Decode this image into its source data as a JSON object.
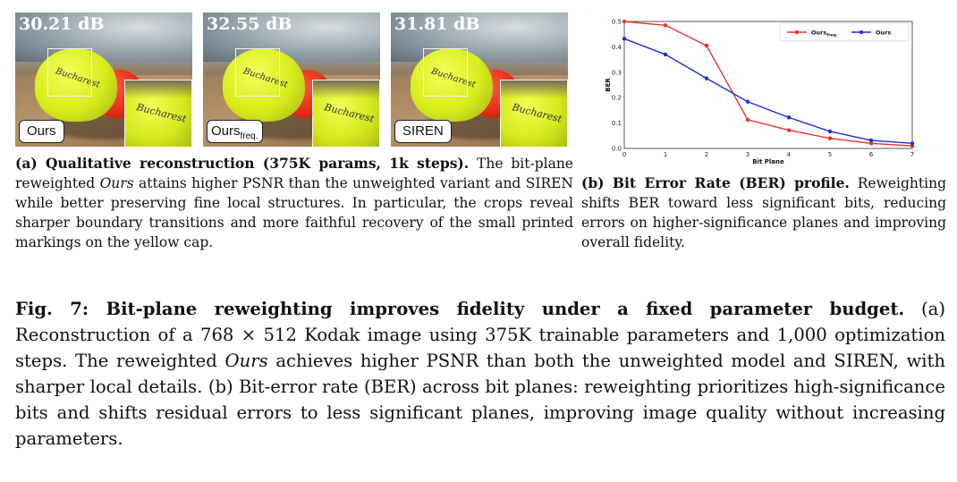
{
  "panels": [
    {
      "psnr": "30.21 dB",
      "label": "Ours",
      "label_sub": "",
      "cap_text": "Bucharest"
    },
    {
      "psnr": "32.55 dB",
      "label": "Ours",
      "label_sub": "freq.",
      "cap_text": "Bucharest"
    },
    {
      "psnr": "31.81 dB",
      "label": "SIREN",
      "label_sub": "",
      "cap_text": "Bucharest"
    }
  ],
  "caption_a": {
    "head": "(a) Qualitative reconstruction (375K params, 1k steps).",
    "body_1": " The bit-plane reweighted ",
    "body_em": "Ours",
    "body_2": " attains higher PSNR than the unweighted variant and SIREN while better preserving fine local structures. In particular, the crops reveal sharper boundary transitions and more faithful recovery of the small printed markings on the yellow cap."
  },
  "caption_b": {
    "head": "(b) Bit Error Rate (BER) profile.",
    "body": " Reweighting shifts BER toward less significant bits, reducing errors on higher-significance planes and improving overall fidelity."
  },
  "figure_caption": {
    "head": "Fig. 7: Bit-plane reweighting improves fidelity under a fixed parameter budget.",
    "body_1": " (a) Reconstruction of a 768 × 512 Kodak image using 375K trainable parameters and 1,000 optimization steps. The reweighted ",
    "body_em": "Ours",
    "body_2": " achieves higher PSNR than both the unweighted model and SIREN, with sharper local details. (b) Bit-error rate (BER) across bit planes: reweighting prioritizes high-significance bits and shifts residual errors to less significant planes, improving image quality without increasing parameters."
  },
  "chart_data": {
    "type": "line",
    "xlabel": "Bit Plane",
    "ylabel": "BER",
    "x": [
      0,
      1,
      2,
      3,
      4,
      5,
      6,
      7
    ],
    "xlim": [
      0,
      7
    ],
    "ylim": [
      0,
      0.5
    ],
    "yticks": [
      "0.0",
      "0.1",
      "0.2",
      "0.3",
      "0.4",
      "0.5"
    ],
    "xticks": [
      "0",
      "1",
      "2",
      "3",
      "4",
      "5",
      "6",
      "7"
    ],
    "grid": true,
    "legend_position": "top-right",
    "series": [
      {
        "name": "Ours",
        "name_sub": "freq.",
        "color": "#e8322a",
        "values": [
          0.5,
          0.485,
          0.405,
          0.113,
          0.072,
          0.04,
          0.02,
          0.01
        ]
      },
      {
        "name": "Ours",
        "name_sub": "",
        "color": "#1f2fd6",
        "values": [
          0.432,
          0.37,
          0.276,
          0.184,
          0.122,
          0.067,
          0.032,
          0.02
        ]
      }
    ]
  }
}
